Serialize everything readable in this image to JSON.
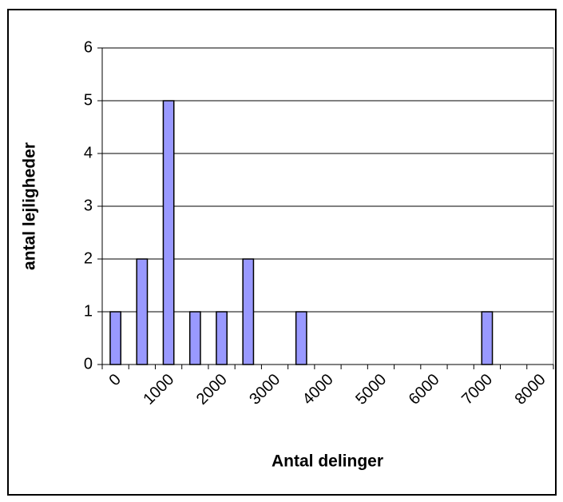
{
  "chart_data": {
    "type": "bar",
    "categories": [
      "0",
      null,
      "1000",
      null,
      "2000",
      null,
      "3000",
      null,
      "4000",
      null,
      "5000",
      null,
      "6000",
      null,
      "7000",
      null,
      "8000"
    ],
    "values": [
      1,
      2,
      5,
      1,
      1,
      2,
      0,
      1,
      0,
      0,
      0,
      0,
      0,
      0,
      1,
      0,
      0
    ],
    "color": "#9999ff",
    "xlabel": "Antal delinger",
    "ylabel": "antal lejligheder",
    "ylim": [
      0,
      6
    ],
    "yticks": [
      0,
      1,
      2,
      3,
      4,
      5,
      6
    ],
    "grid": true
  }
}
